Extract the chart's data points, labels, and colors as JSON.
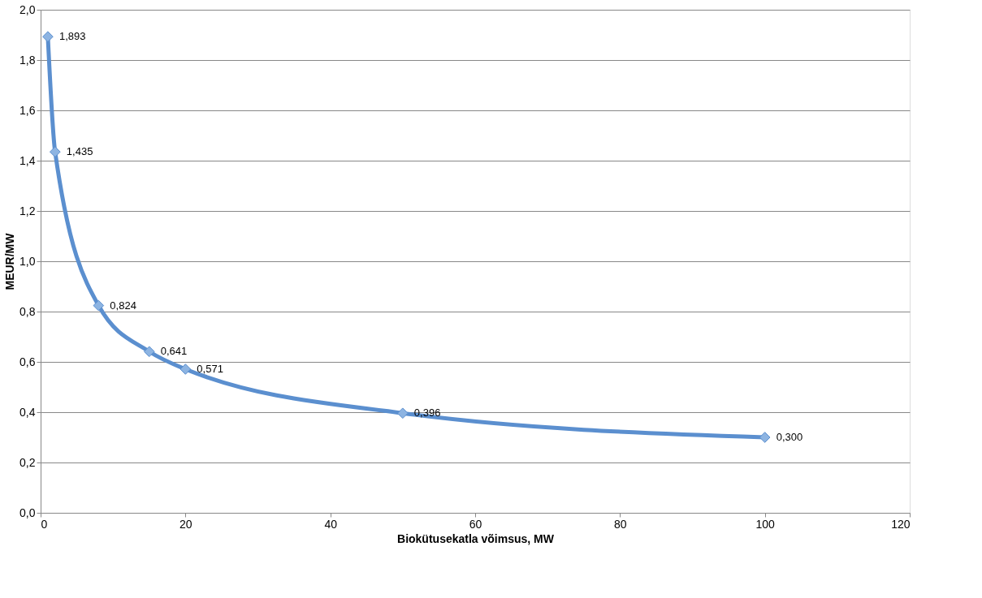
{
  "chart_data": {
    "type": "line",
    "xlabel": "Biokütusekatla võimsus, MW",
    "ylabel": "MEUR/MW",
    "x": [
      1,
      2,
      8,
      15,
      20,
      50,
      100
    ],
    "series": [
      {
        "color": "#5b8fcf",
        "values": [
          1.893,
          1.435,
          0.824,
          0.641,
          0.571,
          0.396,
          0.3
        ],
        "value_labels": [
          "1,893",
          "1,435",
          "0,824",
          "0,641",
          "0,571",
          "0,396",
          "0,300"
        ]
      }
    ],
    "xlim": [
      0,
      120
    ],
    "xticks": [
      0,
      20,
      40,
      60,
      80,
      100,
      120
    ],
    "ylim": [
      0,
      2
    ],
    "yticks": [
      {
        "value": 0,
        "label": "0,0"
      },
      {
        "value": 0.2,
        "label": "0,2"
      },
      {
        "value": 0.4,
        "label": "0,4"
      },
      {
        "value": 0.6,
        "label": "0,6"
      },
      {
        "value": 0.8,
        "label": "0,8"
      },
      {
        "value": 1.0,
        "label": "1,0"
      },
      {
        "value": 1.2,
        "label": "1,2"
      },
      {
        "value": 1.4,
        "label": "1,4"
      },
      {
        "value": 1.6,
        "label": "1,6"
      },
      {
        "value": 1.8,
        "label": "1,8"
      },
      {
        "value": 2.0,
        "label": "2,0"
      }
    ],
    "grid": "y",
    "marker": "diamond",
    "line_style": "solid"
  }
}
